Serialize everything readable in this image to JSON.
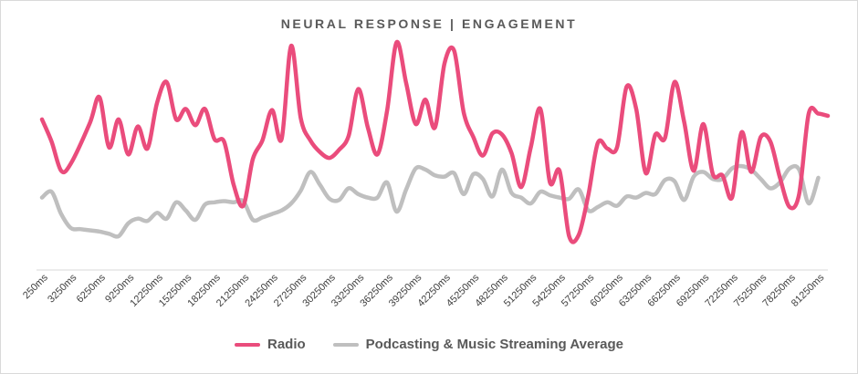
{
  "chart_data": {
    "type": "line",
    "title": "NEURAL RESPONSE | ENGAGEMENT",
    "xlabel": "",
    "ylabel": "",
    "grid": false,
    "legend_position": "bottom",
    "x_tick_labels": [
      "250ms",
      "3250ms",
      "6250ms",
      "9250ms",
      "12250ms",
      "15250ms",
      "18250ms",
      "21250ms",
      "24250ms",
      "27250ms",
      "30250ms",
      "33250ms",
      "36250ms",
      "39250ms",
      "42250ms",
      "45250ms",
      "48250ms",
      "51250ms",
      "54250ms",
      "57250ms",
      "60250ms",
      "63250ms",
      "66250ms",
      "69250ms",
      "72250ms",
      "75250ms",
      "78250ms",
      "81250ms"
    ],
    "x_start_ms": 250,
    "x_end_ms": 82250,
    "ylim": [
      0,
      200
    ],
    "series": [
      {
        "name": "Radio",
        "color": "#ea4c7c",
        "points": [
          [
            250,
            129
          ],
          [
            1250,
            110
          ],
          [
            2250,
            85
          ],
          [
            3250,
            91
          ],
          [
            5250,
            126
          ],
          [
            6250,
            148
          ],
          [
            7250,
            105
          ],
          [
            8250,
            129
          ],
          [
            9250,
            99
          ],
          [
            10250,
            123
          ],
          [
            11250,
            104
          ],
          [
            12250,
            143
          ],
          [
            13250,
            161
          ],
          [
            14250,
            129
          ],
          [
            15250,
            138
          ],
          [
            16250,
            124
          ],
          [
            17250,
            138
          ],
          [
            18250,
            112
          ],
          [
            19250,
            110
          ],
          [
            20250,
            73
          ],
          [
            21250,
            55
          ],
          [
            22250,
            95
          ],
          [
            23250,
            111
          ],
          [
            24250,
            137
          ],
          [
            25250,
            112
          ],
          [
            26250,
            192
          ],
          [
            27250,
            130
          ],
          [
            28250,
            111
          ],
          [
            29250,
            101
          ],
          [
            30250,
            96
          ],
          [
            31250,
            103
          ],
          [
            32250,
            115
          ],
          [
            33250,
            155
          ],
          [
            34250,
            122
          ],
          [
            35250,
            99
          ],
          [
            36250,
            136
          ],
          [
            37250,
            195
          ],
          [
            38250,
            160
          ],
          [
            39250,
            125
          ],
          [
            40250,
            146
          ],
          [
            41250,
            122
          ],
          [
            42250,
            177
          ],
          [
            43250,
            188
          ],
          [
            44250,
            135
          ],
          [
            45250,
            114
          ],
          [
            46250,
            98
          ],
          [
            47250,
            117
          ],
          [
            48250,
            116
          ],
          [
            49250,
            100
          ],
          [
            50250,
            71
          ],
          [
            51250,
            105
          ],
          [
            52250,
            138
          ],
          [
            53250,
            75
          ],
          [
            54250,
            85
          ],
          [
            55250,
            29
          ],
          [
            56250,
            30
          ],
          [
            57250,
            64
          ],
          [
            58250,
            109
          ],
          [
            59250,
            104
          ],
          [
            60250,
            105
          ],
          [
            61250,
            157
          ],
          [
            62250,
            138
          ],
          [
            63250,
            83
          ],
          [
            64250,
            116
          ],
          [
            65250,
            113
          ],
          [
            66250,
            161
          ],
          [
            67250,
            127
          ],
          [
            68250,
            85
          ],
          [
            69250,
            125
          ],
          [
            70250,
            82
          ],
          [
            71250,
            81
          ],
          [
            72250,
            62
          ],
          [
            73250,
            118
          ],
          [
            74250,
            84
          ],
          [
            75250,
            114
          ],
          [
            76250,
            110
          ],
          [
            77250,
            79
          ],
          [
            78250,
            54
          ],
          [
            79250,
            65
          ],
          [
            80250,
            134
          ],
          [
            81250,
            134
          ],
          [
            82250,
            132
          ]
        ]
      },
      {
        "name": "Podcasting & Music Streaming Average",
        "color": "#bfbfbf",
        "points": [
          [
            250,
            62
          ],
          [
            1250,
            67
          ],
          [
            2250,
            48
          ],
          [
            3250,
            36
          ],
          [
            4250,
            35
          ],
          [
            5250,
            34
          ],
          [
            6250,
            33
          ],
          [
            7250,
            31
          ],
          [
            8250,
            29
          ],
          [
            9250,
            40
          ],
          [
            10250,
            44
          ],
          [
            11250,
            42
          ],
          [
            12250,
            49
          ],
          [
            13250,
            44
          ],
          [
            14250,
            58
          ],
          [
            15250,
            51
          ],
          [
            16250,
            43
          ],
          [
            17250,
            56
          ],
          [
            18250,
            58
          ],
          [
            19250,
            59
          ],
          [
            20250,
            58
          ],
          [
            21250,
            59
          ],
          [
            22250,
            43
          ],
          [
            23250,
            45
          ],
          [
            24250,
            48
          ],
          [
            25250,
            51
          ],
          [
            26250,
            57
          ],
          [
            27250,
            68
          ],
          [
            28250,
            84
          ],
          [
            29250,
            73
          ],
          [
            30250,
            61
          ],
          [
            31250,
            60
          ],
          [
            32250,
            70
          ],
          [
            33250,
            65
          ],
          [
            34250,
            62
          ],
          [
            35250,
            62
          ],
          [
            36250,
            75
          ],
          [
            37250,
            50
          ],
          [
            38250,
            69
          ],
          [
            39250,
            87
          ],
          [
            40250,
            86
          ],
          [
            41250,
            81
          ],
          [
            42250,
            80
          ],
          [
            43250,
            83
          ],
          [
            44250,
            65
          ],
          [
            45250,
            82
          ],
          [
            46250,
            78
          ],
          [
            47250,
            63
          ],
          [
            48250,
            86
          ],
          [
            49250,
            66
          ],
          [
            50250,
            62
          ],
          [
            51250,
            57
          ],
          [
            52250,
            67
          ],
          [
            53250,
            64
          ],
          [
            54250,
            62
          ],
          [
            55250,
            61
          ],
          [
            56250,
            69
          ],
          [
            57250,
            51
          ],
          [
            58250,
            54
          ],
          [
            59250,
            58
          ],
          [
            60250,
            55
          ],
          [
            61250,
            63
          ],
          [
            62250,
            62
          ],
          [
            63250,
            66
          ],
          [
            64250,
            65
          ],
          [
            65250,
            77
          ],
          [
            66250,
            76
          ],
          [
            67250,
            60
          ],
          [
            68250,
            80
          ],
          [
            69250,
            84
          ],
          [
            70250,
            78
          ],
          [
            71250,
            78
          ],
          [
            72250,
            87
          ],
          [
            73250,
            89
          ],
          [
            74250,
            86
          ],
          [
            75250,
            78
          ],
          [
            76250,
            70
          ],
          [
            77250,
            75
          ],
          [
            78250,
            87
          ],
          [
            79250,
            86
          ],
          [
            80250,
            57
          ],
          [
            81250,
            79
          ]
        ]
      }
    ]
  }
}
